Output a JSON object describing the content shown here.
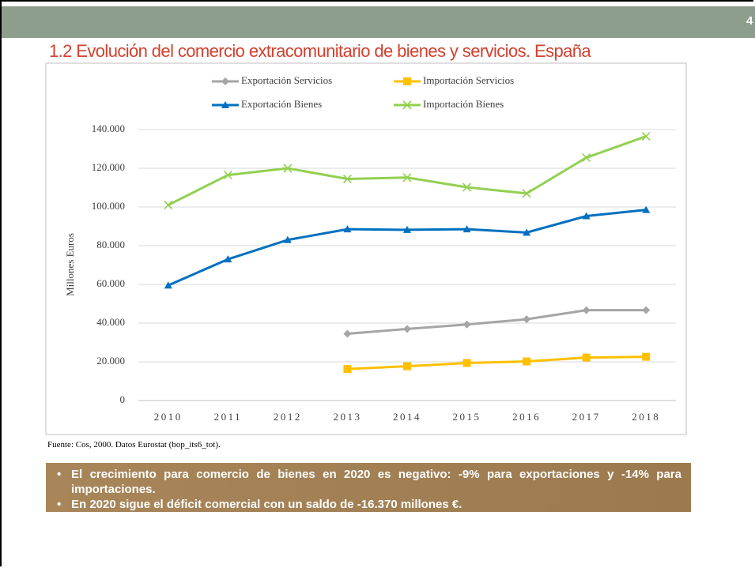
{
  "page_number": "4",
  "heading": "1.2 Evolución del comercio extracomunitario de bienes y servicios. España",
  "source": "Fuente: Cos, 2000. Datos Eurostat (bop_its6_tot).",
  "notes": [
    "El crecimiento para comercio de bienes en 2020 es negativo: -9% para exportaciones y -14% para importaciones.",
    "En 2020 sigue el déficit comercial con un saldo de -16.370 millones €."
  ],
  "chart_data": {
    "type": "line",
    "ylabel": "Millones Euros",
    "categories": [
      "2010",
      "2011",
      "2012",
      "2013",
      "2014",
      "2015",
      "2016",
      "2017",
      "2018"
    ],
    "series": [
      {
        "name": "Exportación Servicios",
        "color": "#a5a5a5",
        "marker": "diamond",
        "values": [
          null,
          null,
          null,
          34500,
          37000,
          39300,
          42000,
          46700,
          46700
        ]
      },
      {
        "name": "Importación Servicios",
        "color": "#ffc000",
        "marker": "square",
        "values": [
          null,
          null,
          null,
          16300,
          17700,
          19400,
          20200,
          22200,
          22600
        ]
      },
      {
        "name": "Exportación Bienes",
        "color": "#0070c0",
        "marker": "triangle",
        "values": [
          59500,
          73000,
          83000,
          88500,
          88200,
          88500,
          86800,
          95300,
          98500
        ]
      },
      {
        "name": "Importación Bienes",
        "color": "#92d050",
        "marker": "x",
        "values": [
          101000,
          116500,
          120000,
          114500,
          115200,
          110200,
          107000,
          125500,
          136500
        ]
      }
    ],
    "ylim": [
      0,
      140000
    ],
    "yticks": [
      0,
      {
        "value": 20000,
        "label": "20.000"
      },
      {
        "value": 40000,
        "label": "40.000"
      },
      {
        "value": 60000,
        "label": "60.000"
      },
      {
        "value": 80000,
        "label": "80.000"
      },
      {
        "value": 100000,
        "label": "100.000"
      },
      {
        "value": 120000,
        "label": "120.000"
      },
      {
        "value": 140000,
        "label": "140.000"
      }
    ],
    "grid": true
  }
}
